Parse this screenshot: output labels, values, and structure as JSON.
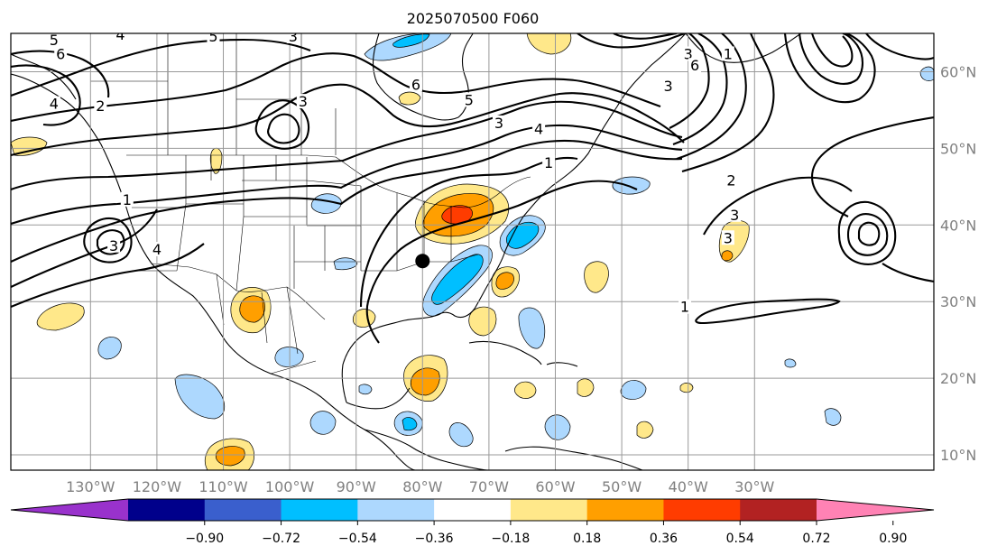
{
  "title": "2025070500 F060",
  "map": {
    "lon_range": [
      -142,
      -3
    ],
    "lat_range": [
      8,
      65
    ],
    "lon_ticks": [
      {
        "value": -130,
        "label": "130°W"
      },
      {
        "value": -120,
        "label": "120°W"
      },
      {
        "value": -110,
        "label": "110°W"
      },
      {
        "value": -100,
        "label": "100°W"
      },
      {
        "value": -90,
        "label": "90°W"
      },
      {
        "value": -80,
        "label": "80°W"
      },
      {
        "value": -70,
        "label": "70°W"
      },
      {
        "value": -60,
        "label": "60°W"
      },
      {
        "value": -50,
        "label": "50°W"
      },
      {
        "value": -40,
        "label": "40°W"
      },
      {
        "value": -30,
        "label": "30°W"
      }
    ],
    "lat_ticks": [
      {
        "value": 60,
        "label": "60°N"
      },
      {
        "value": 50,
        "label": "50°N"
      },
      {
        "value": 40,
        "label": "40°N"
      },
      {
        "value": 30,
        "label": "30°N"
      },
      {
        "value": 20,
        "label": "20°N"
      },
      {
        "value": 10,
        "label": "10°N"
      }
    ],
    "gridlines": true,
    "marker": {
      "lon": -80,
      "lat": 35.3,
      "color": "#000000"
    }
  },
  "colorbar": {
    "levels": [
      "−0.90",
      "−0.72",
      "−0.54",
      "−0.36",
      "−0.18",
      "0.18",
      "0.36",
      "0.54",
      "0.72",
      "0.90"
    ],
    "colors": [
      "#9932cc",
      "#00008b",
      "#3a5fcd",
      "#00bfff",
      "#add8fe",
      "#ffffff",
      "#ffe88a",
      "#ff9f00",
      "#ff3c00",
      "#b22222",
      "#ff82b4"
    ],
    "extend": "both"
  },
  "contour_labels": [
    {
      "text": "5",
      "lon": -135.5,
      "lat": 63.8
    },
    {
      "text": "6",
      "lon": -134.5,
      "lat": 62.0
    },
    {
      "text": "4",
      "lon": -135.5,
      "lat": 55.5
    },
    {
      "text": "2",
      "lon": -128.5,
      "lat": 55.2
    },
    {
      "text": "4",
      "lon": -125.5,
      "lat": 64.5
    },
    {
      "text": "5",
      "lon": -111.5,
      "lat": 64.3
    },
    {
      "text": "3",
      "lon": -99.5,
      "lat": 64.3
    },
    {
      "text": "3",
      "lon": -98.0,
      "lat": 55.8
    },
    {
      "text": "6",
      "lon": -81.0,
      "lat": 58.0
    },
    {
      "text": "5",
      "lon": -73.0,
      "lat": 56.0
    },
    {
      "text": "3",
      "lon": -68.5,
      "lat": 53.0
    },
    {
      "text": "4",
      "lon": -62.5,
      "lat": 52.2
    },
    {
      "text": "1",
      "lon": -61.0,
      "lat": 47.8
    },
    {
      "text": "1",
      "lon": -124.5,
      "lat": 43.0
    },
    {
      "text": "3",
      "lon": -126.5,
      "lat": 37.0
    },
    {
      "text": "4",
      "lon": -120.0,
      "lat": 36.5
    },
    {
      "text": "1",
      "lon": -40.5,
      "lat": 29.0
    },
    {
      "text": "2",
      "lon": -33.5,
      "lat": 45.5
    },
    {
      "text": "3",
      "lon": -33.0,
      "lat": 41.0
    },
    {
      "text": "3",
      "lon": -34.0,
      "lat": 38.0
    },
    {
      "text": "3",
      "lon": -40.0,
      "lat": 62.0
    },
    {
      "text": "6",
      "lon": -39.0,
      "lat": 60.5
    },
    {
      "text": "3",
      "lon": -43.0,
      "lat": 57.8
    },
    {
      "text": "1",
      "lon": -34.0,
      "lat": 62.0
    }
  ]
}
